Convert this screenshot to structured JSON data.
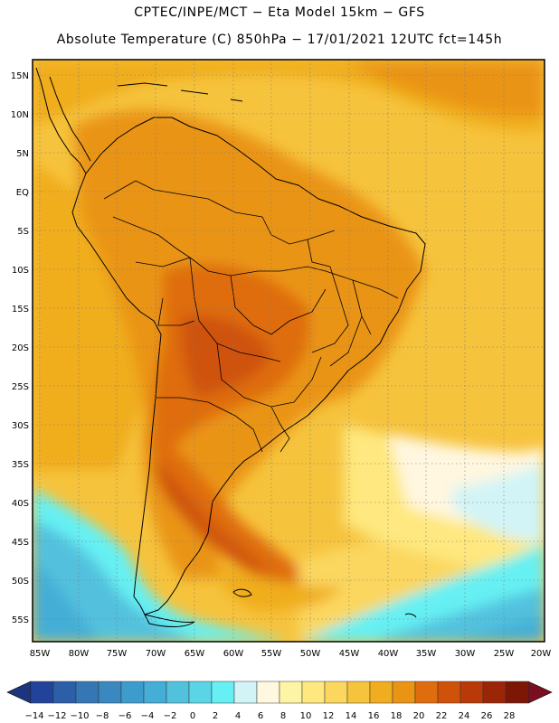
{
  "header": {
    "line1": "CPTEC/INPE/MCT −  Eta Model 15km − GFS",
    "line2": "Absolute Temperature (C) 850hPa − 17/01/2021 12UTC fct=145h"
  },
  "map": {
    "lat_labels": [
      "15N",
      "10N",
      "5N",
      "EQ",
      "5S",
      "10S",
      "15S",
      "20S",
      "25S",
      "30S",
      "35S",
      "40S",
      "45S",
      "50S",
      "55S"
    ],
    "lon_labels": [
      "85W",
      "80W",
      "75W",
      "70W",
      "65W",
      "60W",
      "55W",
      "50W",
      "45W",
      "40W",
      "35W",
      "30W",
      "25W",
      "20W"
    ]
  },
  "colorbar": {
    "labels": [
      "-14",
      "-12",
      "-10",
      "-8",
      "-6",
      "-4",
      "-2",
      "0",
      "2",
      "4",
      "6",
      "8",
      "10",
      "12",
      "14",
      "16",
      "18",
      "20",
      "22",
      "24",
      "26",
      "28"
    ],
    "colors": [
      "#23439a",
      "#2c5fa7",
      "#3577b4",
      "#3a88c0",
      "#3d9ccc",
      "#45aed6",
      "#52c1de",
      "#5ad5e6",
      "#66f0f3",
      "#d2f4f6",
      "#fff7e0",
      "#fef4a6",
      "#fee87f",
      "#fbd75e",
      "#f6c33d",
      "#f0ad1f",
      "#ea9414",
      "#df6d0e",
      "#cf520b",
      "#b93a08",
      "#9b2507",
      "#7c1706"
    ],
    "under_color": "#1d357e",
    "over_color": "#7b0f1f"
  }
}
